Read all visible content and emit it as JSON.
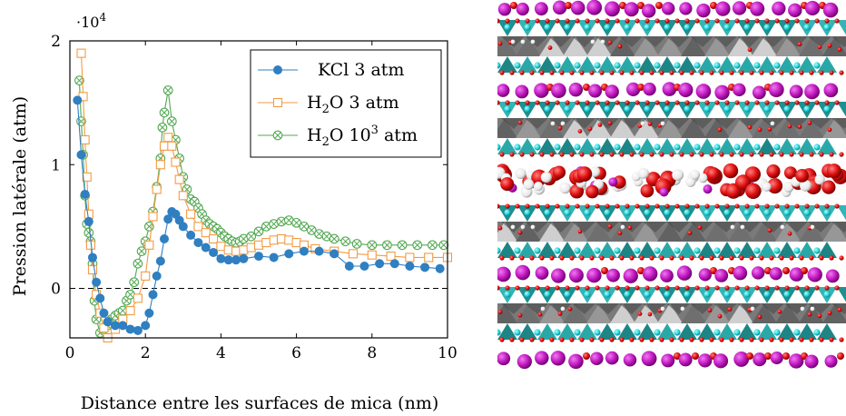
{
  "chart_data": {
    "type": "line",
    "title": "",
    "xlabel": "Distance entre les surfaces de mica (nm)",
    "ylabel": "Pression latérale (atm)",
    "y_multiplier": "·10",
    "y_multiplier_exp": "4",
    "xlim": [
      0,
      10
    ],
    "ylim": [
      -0.4,
      2.0
    ],
    "xticks": [
      0,
      2,
      4,
      6,
      8,
      10
    ],
    "yticks": [
      0,
      1,
      2
    ],
    "reference_line": 0,
    "legend_position": "top-right",
    "series": [
      {
        "name": "KCl 3 atm",
        "label_main": "KCl 3 atm",
        "color": "#2f7fc1",
        "marker": "circle",
        "x": [
          0.2,
          0.3,
          0.4,
          0.5,
          0.6,
          0.7,
          0.8,
          0.9,
          1.0,
          1.2,
          1.4,
          1.6,
          1.8,
          2.0,
          2.1,
          2.2,
          2.3,
          2.4,
          2.5,
          2.6,
          2.7,
          2.8,
          2.9,
          3.0,
          3.2,
          3.4,
          3.6,
          3.8,
          4.0,
          4.2,
          4.4,
          4.6,
          5.0,
          5.4,
          5.8,
          6.2,
          6.6,
          7.0,
          7.4,
          7.8,
          8.2,
          8.6,
          9.0,
          9.4,
          9.8
        ],
        "y": [
          1.52,
          1.08,
          0.76,
          0.54,
          0.25,
          0.05,
          -0.08,
          -0.2,
          -0.27,
          -0.3,
          -0.3,
          -0.33,
          -0.34,
          -0.3,
          -0.2,
          -0.05,
          0.1,
          0.22,
          0.4,
          0.56,
          0.62,
          0.6,
          0.55,
          0.5,
          0.43,
          0.37,
          0.33,
          0.29,
          0.24,
          0.23,
          0.23,
          0.24,
          0.26,
          0.25,
          0.28,
          0.3,
          0.3,
          0.28,
          0.18,
          0.18,
          0.2,
          0.2,
          0.18,
          0.17,
          0.16
        ]
      },
      {
        "name": "H2O 3 atm",
        "label_main": "H",
        "label_sub": "2",
        "label_rest": "O 3 atm",
        "color": "#f29b43",
        "marker": "square",
        "x": [
          0.3,
          0.35,
          0.4,
          0.45,
          0.5,
          0.55,
          0.6,
          0.7,
          0.8,
          0.9,
          1.0,
          1.2,
          1.4,
          1.6,
          1.8,
          2.0,
          2.1,
          2.2,
          2.3,
          2.4,
          2.5,
          2.6,
          2.7,
          2.8,
          2.9,
          3.0,
          3.2,
          3.4,
          3.6,
          3.8,
          4.0,
          4.2,
          4.4,
          4.6,
          4.8,
          5.0,
          5.2,
          5.4,
          5.6,
          5.8,
          6.0,
          6.2,
          6.5,
          7.0,
          7.5,
          8.0,
          8.5,
          9.0,
          9.5,
          10.0
        ],
        "y": [
          1.9,
          1.55,
          1.2,
          0.9,
          0.6,
          0.35,
          0.15,
          -0.05,
          -0.2,
          -0.32,
          -0.4,
          -0.33,
          -0.25,
          -0.18,
          -0.08,
          0.1,
          0.35,
          0.58,
          0.8,
          1.0,
          1.15,
          1.22,
          1.15,
          1.02,
          0.88,
          0.75,
          0.6,
          0.5,
          0.45,
          0.4,
          0.34,
          0.31,
          0.3,
          0.31,
          0.33,
          0.35,
          0.37,
          0.39,
          0.4,
          0.39,
          0.37,
          0.35,
          0.32,
          0.3,
          0.28,
          0.27,
          0.26,
          0.25,
          0.25,
          0.25
        ]
      },
      {
        "name": "H2O 10³ atm",
        "label_main": "H",
        "label_sub": "2",
        "label_rest": "O 10",
        "label_sup": "3",
        "label_end": " atm",
        "color": "#52a852",
        "marker": "crossed-circle",
        "x": [
          0.25,
          0.3,
          0.35,
          0.4,
          0.45,
          0.5,
          0.55,
          0.6,
          0.65,
          0.7,
          0.8,
          0.9,
          1.0,
          1.1,
          1.2,
          1.3,
          1.4,
          1.5,
          1.6,
          1.7,
          1.8,
          1.9,
          2.0,
          2.1,
          2.2,
          2.3,
          2.4,
          2.45,
          2.5,
          2.6,
          2.7,
          2.8,
          2.9,
          3.0,
          3.1,
          3.2,
          3.3,
          3.4,
          3.5,
          3.6,
          3.7,
          3.8,
          3.9,
          4.0,
          4.1,
          4.2,
          4.3,
          4.4,
          4.5,
          4.6,
          4.8,
          5.0,
          5.2,
          5.4,
          5.6,
          5.8,
          6.0,
          6.2,
          6.4,
          6.6,
          6.8,
          7.0,
          7.3,
          7.6,
          8.0,
          8.4,
          8.8,
          9.2,
          9.6,
          9.9
        ],
        "y": [
          1.68,
          1.35,
          1.08,
          0.75,
          0.52,
          0.45,
          0.38,
          0.2,
          -0.1,
          -0.25,
          -0.36,
          -0.33,
          -0.3,
          -0.25,
          -0.22,
          -0.2,
          -0.18,
          -0.1,
          -0.05,
          0.05,
          0.2,
          0.3,
          0.38,
          0.5,
          0.62,
          0.82,
          1.05,
          1.3,
          1.42,
          1.6,
          1.35,
          1.2,
          1.05,
          0.9,
          0.8,
          0.72,
          0.7,
          0.65,
          0.6,
          0.55,
          0.52,
          0.5,
          0.48,
          0.45,
          0.42,
          0.4,
          0.38,
          0.37,
          0.38,
          0.4,
          0.42,
          0.46,
          0.5,
          0.52,
          0.54,
          0.55,
          0.53,
          0.5,
          0.47,
          0.44,
          0.42,
          0.4,
          0.38,
          0.36,
          0.35,
          0.35,
          0.35,
          0.35,
          0.35,
          0.35
        ]
      }
    ]
  },
  "molecule_image": {
    "description_icon": "mica-water-molecular-render",
    "colors": {
      "potassium": "#c21ac2",
      "oxygen": "#e01010",
      "hydrogen": "#f4f4f4",
      "silicon_tetrahedra": "#2aa8a8",
      "aluminum_octahedra": "#808080",
      "cyan_atoms": "#22d0d8"
    }
  }
}
